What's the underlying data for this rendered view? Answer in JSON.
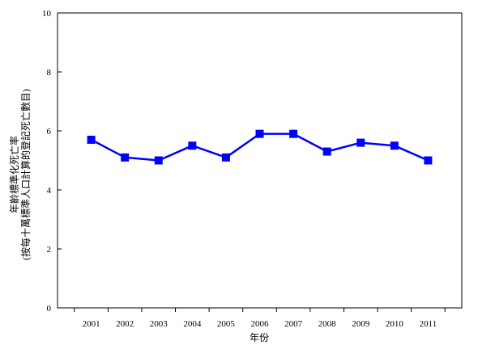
{
  "chart_data": {
    "type": "line",
    "xlabel": "年份",
    "ylabel_line1": "年齡標準化死亡率",
    "ylabel_line2": "(按每十萬標準人口計算的登記死亡數目)",
    "categories": [
      "2001",
      "2002",
      "2003",
      "2004",
      "2005",
      "2006",
      "2007",
      "2008",
      "2009",
      "2010",
      "2011"
    ],
    "yticks": [
      "0",
      "2",
      "4",
      "6",
      "8",
      "10"
    ],
    "ylim": [
      0,
      10
    ],
    "grid": false,
    "series": [
      {
        "values": [
          5.7,
          5.1,
          5.0,
          5.5,
          5.1,
          5.9,
          5.9,
          5.3,
          5.6,
          5.5,
          5.0
        ],
        "color": "#0000ff",
        "marker": "square"
      }
    ]
  }
}
